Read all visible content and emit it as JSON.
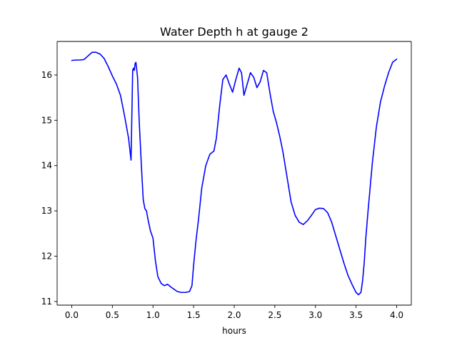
{
  "chart_data": {
    "type": "line",
    "title": "Water Depth h at gauge 2",
    "xlabel": "hours",
    "ylabel": "",
    "xlim": [
      -0.18,
      4.18
    ],
    "ylim": [
      10.92,
      16.74
    ],
    "xticks": [
      0.0,
      0.5,
      1.0,
      1.5,
      2.0,
      2.5,
      3.0,
      3.5,
      4.0
    ],
    "xtick_labels": [
      "0.0",
      "0.5",
      "1.0",
      "1.5",
      "2.0",
      "2.5",
      "3.0",
      "3.5",
      "4.0"
    ],
    "yticks": [
      11,
      12,
      13,
      14,
      15,
      16
    ],
    "ytick_labels": [
      "11",
      "12",
      "13",
      "14",
      "15",
      "16"
    ],
    "grid": false,
    "series": [
      {
        "color": "#0000ff",
        "x": [
          0.0,
          0.05,
          0.1,
          0.15,
          0.2,
          0.25,
          0.3,
          0.35,
          0.4,
          0.45,
          0.5,
          0.55,
          0.6,
          0.65,
          0.7,
          0.73,
          0.75,
          0.76,
          0.77,
          0.78,
          0.79,
          0.81,
          0.83,
          0.86,
          0.88,
          0.9,
          0.92,
          0.94,
          0.97,
          1.0,
          1.03,
          1.06,
          1.1,
          1.14,
          1.18,
          1.22,
          1.26,
          1.3,
          1.35,
          1.4,
          1.45,
          1.48,
          1.5,
          1.53,
          1.56,
          1.6,
          1.65,
          1.7,
          1.75,
          1.78,
          1.82,
          1.86,
          1.9,
          1.94,
          1.98,
          2.02,
          2.06,
          2.09,
          2.12,
          2.16,
          2.2,
          2.24,
          2.28,
          2.32,
          2.36,
          2.4,
          2.44,
          2.48,
          2.52,
          2.56,
          2.6,
          2.65,
          2.7,
          2.75,
          2.8,
          2.85,
          2.9,
          2.95,
          3.0,
          3.05,
          3.1,
          3.15,
          3.2,
          3.25,
          3.3,
          3.35,
          3.4,
          3.45,
          3.5,
          3.53,
          3.56,
          3.58,
          3.6,
          3.62,
          3.65,
          3.7,
          3.75,
          3.8,
          3.85,
          3.9,
          3.95,
          4.0
        ],
        "y": [
          16.32,
          16.33,
          16.33,
          16.34,
          16.42,
          16.5,
          16.5,
          16.46,
          16.36,
          16.18,
          15.98,
          15.8,
          15.55,
          15.1,
          14.6,
          14.12,
          16.1,
          16.15,
          16.1,
          16.25,
          16.28,
          15.95,
          15.0,
          13.9,
          13.25,
          13.05,
          13.0,
          12.8,
          12.55,
          12.4,
          11.9,
          11.55,
          11.4,
          11.35,
          11.38,
          11.32,
          11.27,
          11.22,
          11.2,
          11.2,
          11.22,
          11.35,
          11.8,
          12.35,
          12.8,
          13.5,
          14.0,
          14.25,
          14.32,
          14.6,
          15.3,
          15.9,
          16.0,
          15.8,
          15.62,
          15.9,
          16.15,
          16.05,
          15.55,
          15.8,
          16.05,
          15.95,
          15.72,
          15.85,
          16.1,
          16.05,
          15.6,
          15.2,
          14.95,
          14.65,
          14.3,
          13.75,
          13.2,
          12.9,
          12.75,
          12.7,
          12.78,
          12.9,
          13.03,
          13.06,
          13.05,
          12.96,
          12.75,
          12.45,
          12.15,
          11.85,
          11.58,
          11.38,
          11.2,
          11.15,
          11.2,
          11.45,
          11.85,
          12.4,
          13.05,
          14.05,
          14.85,
          15.4,
          15.75,
          16.05,
          16.28,
          16.35
        ]
      }
    ]
  }
}
